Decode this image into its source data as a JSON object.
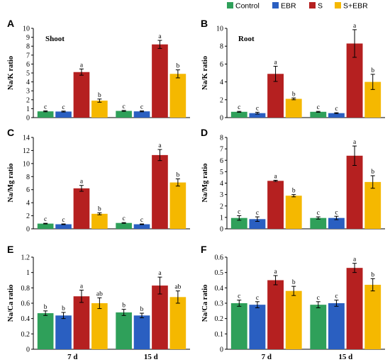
{
  "legend": {
    "entries": [
      {
        "label": "Control",
        "color": "#2fa05a"
      },
      {
        "label": "EBR",
        "color": "#2a5fc1"
      },
      {
        "label": "S",
        "color": "#b52020"
      },
      {
        "label": "S+EBR",
        "color": "#f5b800"
      }
    ],
    "placement": "top-right"
  },
  "chart_data": [
    {
      "type": "bar",
      "panel": "A",
      "inner_label": "Shoot",
      "ylabel": "Na/K ratio",
      "ylim": [
        0,
        10
      ],
      "yticks": [
        0,
        1,
        2,
        3,
        4,
        5,
        6,
        7,
        8,
        9,
        10
      ],
      "categories": [
        "7 d",
        "15 d"
      ],
      "series": [
        {
          "name": "Control",
          "values": [
            0.7,
            0.75
          ],
          "errors": [
            0.05,
            0.05
          ],
          "letters": [
            "c",
            "c"
          ]
        },
        {
          "name": "EBR",
          "values": [
            0.68,
            0.7
          ],
          "errors": [
            0.05,
            0.05
          ],
          "letters": [
            "c",
            "c"
          ]
        },
        {
          "name": "S",
          "values": [
            5.1,
            8.2
          ],
          "errors": [
            0.35,
            0.45
          ],
          "letters": [
            "a",
            "a"
          ]
        },
        {
          "name": "S+EBR",
          "values": [
            1.9,
            4.9
          ],
          "errors": [
            0.18,
            0.45
          ],
          "letters": [
            "b",
            "b"
          ]
        }
      ]
    },
    {
      "type": "bar",
      "panel": "B",
      "inner_label": "Root",
      "ylabel": "Na/K ratio",
      "ylim": [
        0,
        10
      ],
      "yticks": [
        0,
        2,
        4,
        6,
        8,
        10
      ],
      "categories": [
        "7 d",
        "15 d"
      ],
      "series": [
        {
          "name": "Control",
          "values": [
            0.65,
            0.65
          ],
          "errors": [
            0.05,
            0.05
          ],
          "letters": [
            "c",
            "c"
          ]
        },
        {
          "name": "EBR",
          "values": [
            0.5,
            0.5
          ],
          "errors": [
            0.1,
            0.05
          ],
          "letters": [
            "c",
            "c"
          ]
        },
        {
          "name": "S",
          "values": [
            4.9,
            8.3
          ],
          "errors": [
            0.85,
            1.55
          ],
          "letters": [
            "a",
            "a"
          ]
        },
        {
          "name": "S+EBR",
          "values": [
            2.1,
            4.0
          ],
          "errors": [
            0.1,
            0.85
          ],
          "letters": [
            "b",
            "b"
          ]
        }
      ]
    },
    {
      "type": "bar",
      "panel": "C",
      "inner_label": "",
      "ylabel": "Na/Mg ratio",
      "ylim": [
        0,
        14
      ],
      "yticks": [
        0,
        2,
        4,
        6,
        8,
        10,
        12,
        14
      ],
      "categories": [
        "7 d",
        "15 d"
      ],
      "series": [
        {
          "name": "Control",
          "values": [
            0.8,
            0.9
          ],
          "errors": [
            0.05,
            0.06
          ],
          "letters": [
            "c",
            "c"
          ]
        },
        {
          "name": "EBR",
          "values": [
            0.7,
            0.7
          ],
          "errors": [
            0.05,
            0.05
          ],
          "letters": [
            "c",
            "c"
          ]
        },
        {
          "name": "S",
          "values": [
            6.2,
            11.3
          ],
          "errors": [
            0.45,
            0.85
          ],
          "letters": [
            "a",
            "a"
          ]
        },
        {
          "name": "S+EBR",
          "values": [
            2.3,
            7.1
          ],
          "errors": [
            0.15,
            0.55
          ],
          "letters": [
            "b",
            "b"
          ]
        }
      ]
    },
    {
      "type": "bar",
      "panel": "D",
      "inner_label": "",
      "ylabel": "Na/Mg ratio",
      "ylim": [
        0,
        8
      ],
      "yticks": [
        0,
        1,
        2,
        3,
        4,
        5,
        6,
        7,
        8
      ],
      "categories": [
        "7 d",
        "15 d"
      ],
      "series": [
        {
          "name": "Control",
          "values": [
            0.95,
            0.95
          ],
          "errors": [
            0.2,
            0.1
          ],
          "letters": [
            "c",
            "c"
          ]
        },
        {
          "name": "EBR",
          "values": [
            0.85,
            0.95
          ],
          "errors": [
            0.2,
            0.15
          ],
          "letters": [
            "c",
            "c"
          ]
        },
        {
          "name": "S",
          "values": [
            4.2,
            6.4
          ],
          "errors": [
            0.05,
            0.85
          ],
          "letters": [
            "a",
            "a"
          ]
        },
        {
          "name": "S+EBR",
          "values": [
            2.9,
            4.1
          ],
          "errors": [
            0.1,
            0.55
          ],
          "letters": [
            "b",
            "b"
          ]
        }
      ]
    },
    {
      "type": "bar",
      "panel": "E",
      "inner_label": "",
      "ylabel": "Na/Ca ratio",
      "ylim": [
        0,
        1.2
      ],
      "yticks": [
        "0",
        "0.2",
        "0.4",
        "0.6",
        "0.8",
        "1",
        "1.2"
      ],
      "categories": [
        "7 d",
        "15 d"
      ],
      "series": [
        {
          "name": "Control",
          "values": [
            0.47,
            0.48
          ],
          "errors": [
            0.03,
            0.04
          ],
          "letters": [
            "b",
            "b"
          ]
        },
        {
          "name": "EBR",
          "values": [
            0.44,
            0.44
          ],
          "errors": [
            0.04,
            0.03
          ],
          "letters": [
            "b",
            "b"
          ]
        },
        {
          "name": "S",
          "values": [
            0.69,
            0.83
          ],
          "errors": [
            0.08,
            0.11
          ],
          "letters": [
            "a",
            "a"
          ]
        },
        {
          "name": "S+EBR",
          "values": [
            0.6,
            0.68
          ],
          "errors": [
            0.07,
            0.08
          ],
          "letters": [
            "ab",
            "ab"
          ]
        }
      ]
    },
    {
      "type": "bar",
      "panel": "F",
      "inner_label": "",
      "ylabel": "Na/Ca ratio",
      "ylim": [
        0,
        0.6
      ],
      "yticks": [
        "0",
        "0.1",
        "0.2",
        "0.3",
        "0.4",
        "0.5",
        "0.6"
      ],
      "categories": [
        "7 d",
        "15 d"
      ],
      "series": [
        {
          "name": "Control",
          "values": [
            0.3,
            0.29
          ],
          "errors": [
            0.02,
            0.02
          ],
          "letters": [
            "c",
            "c"
          ]
        },
        {
          "name": "EBR",
          "values": [
            0.29,
            0.3
          ],
          "errors": [
            0.02,
            0.02
          ],
          "letters": [
            "c",
            "c"
          ]
        },
        {
          "name": "S",
          "values": [
            0.45,
            0.53
          ],
          "errors": [
            0.03,
            0.03
          ],
          "letters": [
            "a",
            "a"
          ]
        },
        {
          "name": "S+EBR",
          "values": [
            0.38,
            0.42
          ],
          "errors": [
            0.03,
            0.04
          ],
          "letters": [
            "b",
            "b"
          ]
        }
      ]
    }
  ]
}
